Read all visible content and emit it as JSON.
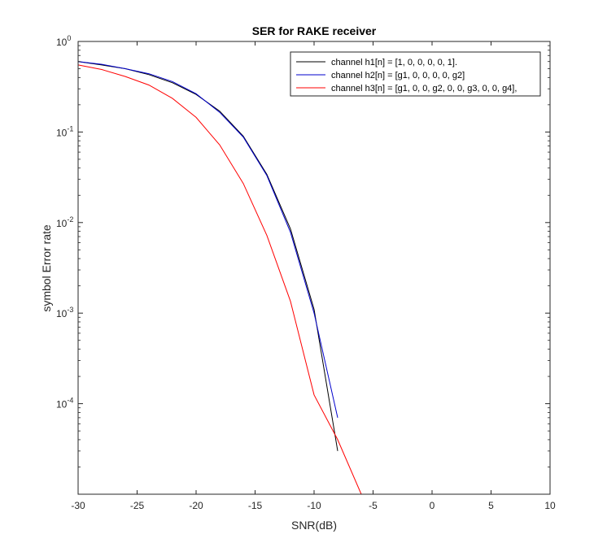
{
  "chart_data": {
    "type": "line",
    "title": "SER for RAKE receiver",
    "xlabel": "SNR(dB)",
    "ylabel": "symbol Error rate",
    "xlim": [
      -30,
      10
    ],
    "ylim": [
      1e-05,
      1
    ],
    "yscale": "log",
    "grid": false,
    "legend_position": "top-right",
    "x_ticks": [
      -30,
      -25,
      -20,
      -15,
      -10,
      -5,
      0,
      5,
      10
    ],
    "x_tick_labels": [
      "-30",
      "-25",
      "-20",
      "-15",
      "-10",
      "-5",
      "0",
      "5",
      "10"
    ],
    "y_ticks": [
      {
        "value": 0.0001,
        "base": "10",
        "exp": "-4"
      },
      {
        "value": 0.001,
        "base": "10",
        "exp": "-3"
      },
      {
        "value": 0.01,
        "base": "10",
        "exp": "-2"
      },
      {
        "value": 0.1,
        "base": "10",
        "exp": "-1"
      },
      {
        "value": 1,
        "base": "10",
        "exp": "0"
      }
    ],
    "series": [
      {
        "name": "channel h1[n] = [1, 0, 0, 0, 0, 1].",
        "color": "#000000",
        "x": [
          -30,
          -28,
          -26,
          -24,
          -22,
          -20,
          -18,
          -16,
          -14,
          -12,
          -10,
          -8
        ],
        "y": [
          0.6,
          0.55,
          0.5,
          0.43,
          0.35,
          0.26,
          0.17,
          0.09,
          0.034,
          0.0085,
          0.0011,
          3e-05
        ]
      },
      {
        "name": "channel h2[n] = [g1, 0, 0, 0, 0, g2]",
        "color": "#0000cc",
        "x": [
          -30,
          -28,
          -26,
          -24,
          -22,
          -20,
          -18,
          -16,
          -14,
          -12,
          -10,
          -8
        ],
        "y": [
          0.6,
          0.56,
          0.5,
          0.44,
          0.36,
          0.265,
          0.165,
          0.088,
          0.033,
          0.0078,
          0.001,
          7e-05
        ]
      },
      {
        "name": "channel h3[n] = [g1, 0, 0, g2, 0, 0, g3, 0, 0, g4],",
        "color": "#ff0000",
        "x": [
          -30,
          -28,
          -26,
          -24,
          -22,
          -20,
          -18,
          -16,
          -14,
          -12,
          -10,
          -8,
          -6,
          -4
        ],
        "y": [
          0.55,
          0.49,
          0.41,
          0.33,
          0.235,
          0.145,
          0.072,
          0.027,
          0.0072,
          0.00135,
          0.000125,
          4e-05,
          1e-05,
          1e-05
        ]
      }
    ]
  }
}
